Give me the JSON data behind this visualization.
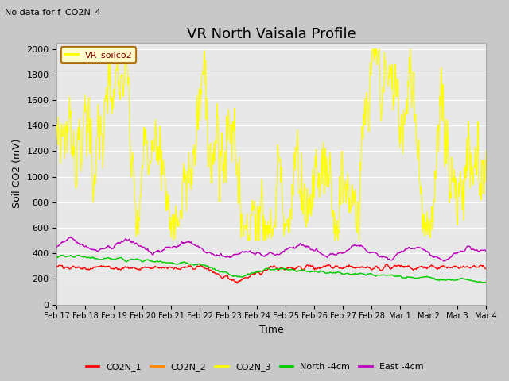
{
  "title": "VR North Vaisala Profile",
  "subtitle": "No data for f_CO2N_4",
  "ylabel": "Soil CO2 (mV)",
  "xlabel": "Time",
  "ylim": [
    0,
    2050
  ],
  "yticks": [
    0,
    200,
    400,
    600,
    800,
    1000,
    1200,
    1400,
    1600,
    1800,
    2000
  ],
  "legend_label": "VR_soilco2",
  "colors": {
    "CO2N_1": "#ff0000",
    "CO2N_2": "#ff8800",
    "CO2N_3": "#ffff00",
    "North_4cm": "#00cc00",
    "East_4cm": "#bb00bb"
  },
  "fig_bg": "#c8c8c8",
  "plot_bg": "#e8e8e8",
  "grid_color": "#ffffff",
  "title_fontsize": 13,
  "label_fontsize": 9,
  "tick_fontsize": 8,
  "n_points": 800,
  "date_labels": [
    "Feb 17",
    "Feb 18",
    "Feb 19",
    "Feb 20",
    "Feb 21",
    "Feb 22",
    "Feb 23",
    "Feb 24",
    "Feb 25",
    "Feb 26",
    "Feb 27",
    "Feb 28",
    "Mar 1",
    "Mar 2",
    "Mar 3",
    "Mar 4"
  ]
}
